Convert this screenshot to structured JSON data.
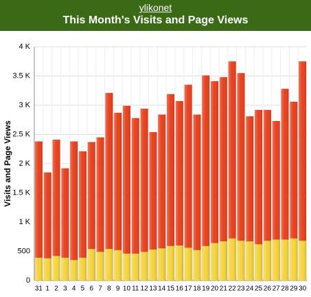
{
  "header": {
    "site": "ylikonet"
  },
  "chart_data": {
    "type": "bar",
    "title": "This Month's Visits and Page Views",
    "y_label": "Visits and Page Views",
    "categories": [
      "31",
      "1",
      "2",
      "3",
      "4",
      "5",
      "6",
      "7",
      "8",
      "9",
      "10",
      "11",
      "12",
      "13",
      "14",
      "15",
      "16",
      "17",
      "18",
      "19",
      "20",
      "21",
      "22",
      "23",
      "24",
      "25",
      "26",
      "27",
      "28",
      "29",
      "30"
    ],
    "series": [
      {
        "color": "#e8401c",
        "values": [
          2380,
          1850,
          2410,
          1920,
          2380,
          2210,
          2370,
          2450,
          3210,
          2870,
          2990,
          2780,
          2940,
          2540,
          2840,
          3190,
          3070,
          3350,
          2840,
          3510,
          3410,
          3480,
          3750,
          3550,
          2810,
          2920,
          2920,
          2730,
          3280,
          3060,
          3750
        ]
      },
      {
        "color": "#f5d43a",
        "values": [
          390,
          380,
          420,
          390,
          350,
          390,
          540,
          490,
          540,
          520,
          460,
          460,
          490,
          530,
          550,
          590,
          600,
          560,
          520,
          590,
          640,
          670,
          720,
          680,
          670,
          620,
          680,
          700,
          700,
          720,
          680
        ]
      }
    ],
    "ylim": [
      0,
      4000
    ],
    "yticks": [
      0,
      500,
      {
        "value": 1000,
        "label": "1 K"
      },
      {
        "value": 1500,
        "label": "1.5 K"
      },
      {
        "value": 2000,
        "label": "2 K"
      },
      {
        "value": 2500,
        "label": "2.5 K"
      },
      {
        "value": 3000,
        "label": "3 K"
      },
      {
        "value": 3500,
        "label": "3.5 K"
      },
      {
        "value": 4000,
        "label": "4 K"
      }
    ],
    "grid": true
  }
}
